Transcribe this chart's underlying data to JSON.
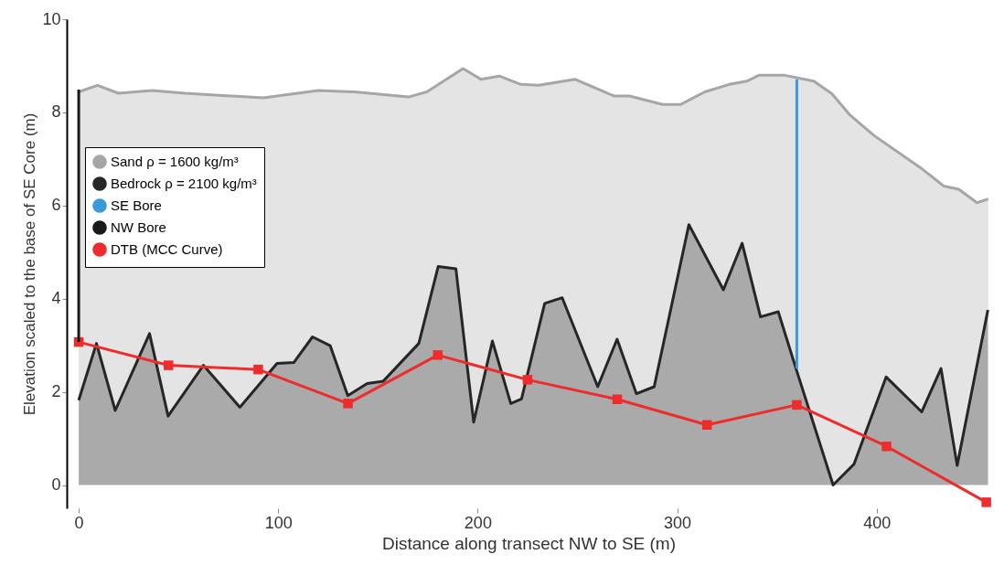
{
  "chart_data": {
    "type": "area",
    "xlabel": "Distance along transect NW to SE (m)",
    "ylabel": "Elevation scaled to the base of SE Core (m)",
    "xlim": [
      -6,
      457
    ],
    "ylim": [
      -0.5,
      10
    ],
    "xticks": [
      0,
      100,
      200,
      300,
      400
    ],
    "yticks": [
      0,
      2,
      4,
      6,
      8,
      10
    ],
    "grid": false,
    "legend": "top left",
    "series": [
      {
        "name": "Sand ρ = 1600 kg/m³",
        "color": "#a6a6a6",
        "x": [
          0,
          9.4,
          19.9,
          36.7,
          53.3,
          92.6,
          120,
          138.2,
          165.3,
          174.5,
          192.7,
          201.7,
          210.9,
          221.6,
          230.6,
          248.7,
          268.5,
          276.1,
          292.7,
          301.8,
          313.9,
          326.1,
          335,
          341.2,
          353.4,
          368.5,
          377.6,
          386.7,
          398.8,
          423,
          433.6,
          441.2,
          450.3,
          456
        ],
        "values": [
          8.44,
          8.58,
          8.41,
          8.47,
          8.41,
          8.31,
          8.47,
          8.44,
          8.33,
          8.44,
          8.94,
          8.71,
          8.78,
          8.6,
          8.58,
          8.71,
          8.35,
          8.35,
          8.17,
          8.17,
          8.44,
          8.6,
          8.67,
          8.8,
          8.8,
          8.67,
          8.4,
          7.94,
          7.5,
          6.78,
          6.42,
          6.35,
          6.06,
          6.14
        ]
      },
      {
        "name": "Bedrock ρ = 2100 kg/m³",
        "color": "#262626",
        "x": [
          0,
          8.9,
          18.3,
          35.5,
          44.8,
          62.5,
          80.8,
          99.4,
          107.8,
          117.2,
          126.1,
          134.9,
          144.6,
          152.7,
          170.5,
          180.2,
          189.1,
          198,
          207.4,
          216.6,
          222,
          233.6,
          242.4,
          260.2,
          269.9,
          279.6,
          288.5,
          305.9,
          323.2,
          332.6,
          341.8,
          350.7,
          359.6,
          378.2,
          388.7,
          404.8,
          422.6,
          432.3,
          440.4,
          455.8
        ],
        "values": [
          1.82,
          3.04,
          1.6,
          3.25,
          1.48,
          2.57,
          1.67,
          2.61,
          2.63,
          3.18,
          2.99,
          1.92,
          2.18,
          2.23,
          3.04,
          4.69,
          4.64,
          1.35,
          3.09,
          1.75,
          1.85,
          3.9,
          4.02,
          2.11,
          3.13,
          1.96,
          2.11,
          5.59,
          4.19,
          5.19,
          3.61,
          3.72,
          2.5,
          0,
          0.45,
          2.32,
          1.57,
          2.5,
          0.42,
          3.76
        ]
      },
      {
        "name": "SE Bore",
        "type": "line",
        "color": "#3a9ad9",
        "x": [
          360,
          360
        ],
        "values": [
          2.5,
          8.71
        ]
      },
      {
        "name": "NW Bore",
        "type": "line",
        "color": "#1a1a1a",
        "x": [
          0,
          0
        ],
        "values": [
          3.07,
          8.49
        ]
      },
      {
        "name": "DTB (MCC Curve)",
        "type": "line",
        "color": "#ee2c2c",
        "marker": "square",
        "x": [
          0,
          45,
          90,
          135,
          180,
          225,
          270,
          315,
          360,
          405,
          455
        ],
        "values": [
          3.07,
          2.57,
          2.48,
          1.75,
          2.79,
          2.26,
          1.84,
          1.29,
          1.72,
          0.83,
          -0.37
        ]
      }
    ]
  }
}
